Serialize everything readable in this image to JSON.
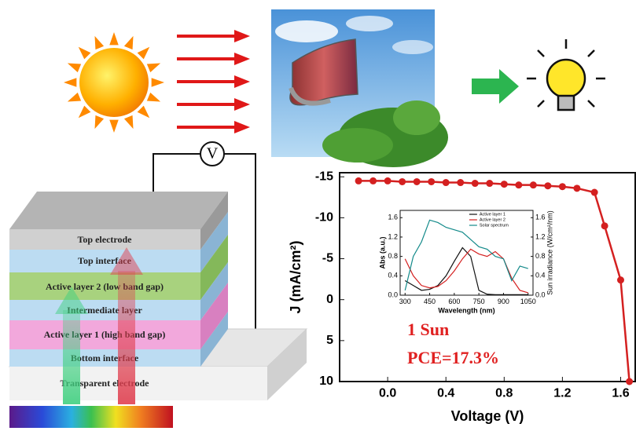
{
  "stack": {
    "voltmeter": "V",
    "layers": [
      "Top electrode",
      "Top interface",
      "Active layer 2 (low band gap)",
      "Intermediate layer",
      "Active layer 1 (high band gap)",
      "Bottom interface",
      "Transparent electrode"
    ]
  },
  "chart_data": [
    {
      "type": "line",
      "x_label": "Voltage (V)",
      "y_label": "J (mA/cm²)",
      "y_inverted": true,
      "annotations": [
        "1 Sun",
        "PCE=17.3%"
      ],
      "x": [
        -0.2,
        -0.1,
        0,
        0.1,
        0.2,
        0.3,
        0.4,
        0.5,
        0.6,
        0.7,
        0.8,
        0.9,
        1.0,
        1.1,
        1.2,
        1.3,
        1.42,
        1.49,
        1.6,
        1.66
      ],
      "series": [
        {
          "color": "#d42020",
          "markers": true,
          "values": [
            -14.5,
            -14.5,
            -14.5,
            -14.4,
            -14.4,
            -14.4,
            -14.3,
            -14.3,
            -14.2,
            -14.2,
            -14.1,
            -14.0,
            -14.0,
            -13.9,
            -13.8,
            -13.6,
            -13.1,
            -9.0,
            -2.4,
            10
          ]
        }
      ],
      "xlim": [
        -0.33,
        1.7
      ],
      "xticks": [
        {
          "value": 0,
          "label": "0.0"
        },
        0.4,
        0.8,
        1.2,
        1.6
      ],
      "ylim": [
        -15.5,
        10
      ],
      "yticks": [
        -15,
        -10,
        -5,
        0,
        5,
        10
      ]
    },
    {
      "type": "line",
      "x_label": "Wavelength (nm)",
      "y_label": "Abs (a.u.)",
      "y2_label": "Sun irradiance (W/cm²/nm)",
      "legend": "top-right",
      "x": [
        300,
        350,
        400,
        450,
        500,
        550,
        600,
        650,
        700,
        750,
        800,
        850,
        900,
        950,
        1000,
        1050
      ],
      "series": [
        {
          "name": "Active layer 1",
          "color": "#111111",
          "values": [
            0.3,
            0.2,
            0.1,
            0.12,
            0.2,
            0.4,
            0.7,
            0.98,
            0.8,
            0.1,
            0.02,
            0.01,
            0.01,
            0.01,
            0.01,
            0.01
          ]
        },
        {
          "name": "Active layer 2",
          "color": "#d42020",
          "values": [
            0.75,
            0.4,
            0.2,
            0.15,
            0.18,
            0.3,
            0.5,
            0.75,
            0.95,
            0.85,
            0.8,
            0.9,
            0.75,
            0.35,
            0.1,
            0.05
          ]
        },
        {
          "name": "Solar spectrum",
          "color": "#138a8a",
          "axis": "y2",
          "values": [
            0.1,
            0.8,
            1.1,
            1.55,
            1.5,
            1.4,
            1.35,
            1.3,
            1.15,
            1.0,
            0.95,
            0.8,
            0.75,
            0.3,
            0.6,
            0.55
          ]
        }
      ],
      "xlim": [
        270,
        1080
      ],
      "xticks": [
        300,
        450,
        600,
        750,
        900,
        1050
      ],
      "ylim": [
        0,
        1.75
      ],
      "yticks": [
        {
          "value": 0,
          "label": "0.0"
        },
        0.4,
        0.8,
        1.2,
        1.6
      ],
      "y2lim": [
        0,
        1.75
      ],
      "y2ticks": [
        {
          "value": 0,
          "label": "0.0"
        },
        0.4,
        0.8,
        1.2,
        1.6
      ]
    }
  ]
}
